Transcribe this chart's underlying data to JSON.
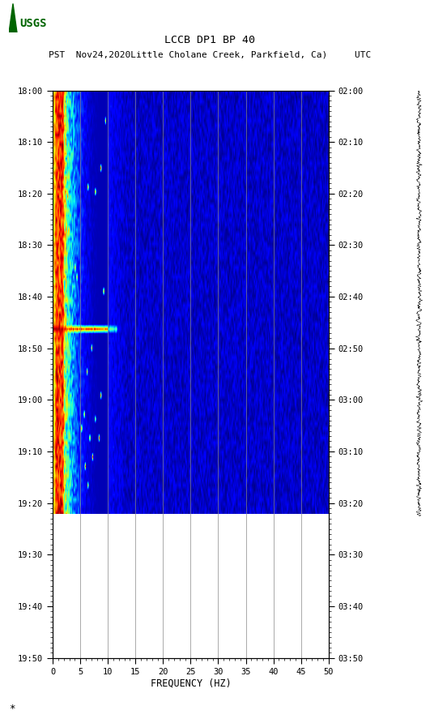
{
  "title_line1": "LCCB DP1 BP 40",
  "title_line2": "PST  Nov24,2020Little Cholane Creek, Parkfield, Ca)     UTC",
  "xlabel": "FREQUENCY (HZ)",
  "freq_min": 0,
  "freq_max": 50,
  "freq_ticks": [
    0,
    5,
    10,
    15,
    20,
    25,
    30,
    35,
    40,
    45,
    50
  ],
  "freq_gridlines": [
    5,
    10,
    15,
    20,
    25,
    30,
    35,
    40,
    45
  ],
  "time_labels_left": [
    "18:00",
    "18:10",
    "18:20",
    "18:30",
    "18:40",
    "18:50",
    "19:00",
    "19:10",
    "19:20",
    "19:30",
    "19:40",
    "19:50"
  ],
  "time_labels_right": [
    "02:00",
    "02:10",
    "02:20",
    "02:30",
    "02:40",
    "02:50",
    "03:00",
    "03:10",
    "03:20",
    "03:30",
    "03:40",
    "03:50"
  ],
  "n_time": 120,
  "n_freq": 300,
  "active_rows": 90,
  "bg_color": "#ffffff",
  "hot_cols": 12,
  "warm_cols": 60,
  "logo_color": "#006400"
}
